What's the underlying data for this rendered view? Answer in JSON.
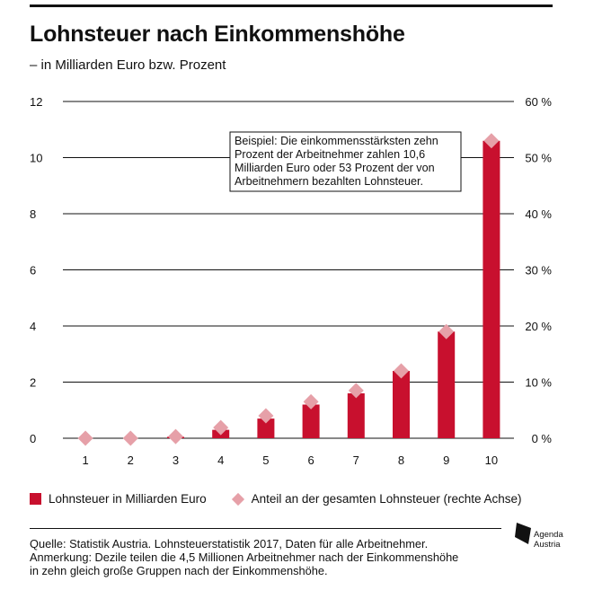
{
  "title": "Lohnsteuer nach Einkommenshöhe",
  "subtitle": "– in Milliarden Euro bzw. Prozent",
  "legend": {
    "bar_label": "Lohnsteuer in Milliarden Euro",
    "diamond_label": "Anteil an der gesamten Lohnsteuer (rechte Achse)"
  },
  "footnote": {
    "line1": "Quelle: Statistik Austria. Lohnsteuerstatistik 2017, Daten für alle Arbeitnehmer.",
    "line2": "Anmerkung: Dezile teilen die 4,5 Millionen Arbeitnehmer nach der Einkommenshöhe",
    "line3": "in zehn gleich große Gruppen nach der Einkommenshöhe."
  },
  "logo": {
    "line1": "Agenda",
    "line2": "Austria"
  },
  "colors": {
    "bar": "#c8102e",
    "diamond": "#e6a0a8",
    "grid": "#111111"
  },
  "chart_data": {
    "type": "bar",
    "categories": [
      "1",
      "2",
      "3",
      "4",
      "5",
      "6",
      "7",
      "8",
      "9",
      "10"
    ],
    "series": [
      {
        "name": "Lohnsteuer in Milliarden Euro",
        "axis": "left",
        "values": [
          0.0,
          0.0,
          0.05,
          0.3,
          0.7,
          1.2,
          1.6,
          2.4,
          3.8,
          10.6
        ]
      },
      {
        "name": "Anteil an der gesamten Lohnsteuer (rechte Achse)",
        "axis": "right",
        "marker": "diamond",
        "values": [
          0.0,
          0.0,
          0.3,
          1.9,
          4.0,
          6.5,
          8.5,
          12.0,
          19.0,
          53.0
        ]
      }
    ],
    "left_ticks": [
      "0",
      "2",
      "4",
      "6",
      "8",
      "10",
      "12"
    ],
    "right_ticks": [
      "0 %",
      "10 %",
      "20 %",
      "30 %",
      "40 %",
      "50 %",
      "60 %"
    ],
    "ylim_left": [
      0,
      12
    ],
    "ylim_right": [
      0,
      60
    ],
    "grid": true,
    "annotation": {
      "lines": [
        "Beispiel: Die einkommensstärksten zehn",
        "Prozent der Arbeitnehmer zahlen 10,6",
        "Milliarden Euro oder 53 Prozent der von",
        "Arbeitnehmern bezahlten Lohnsteuer."
      ]
    }
  }
}
